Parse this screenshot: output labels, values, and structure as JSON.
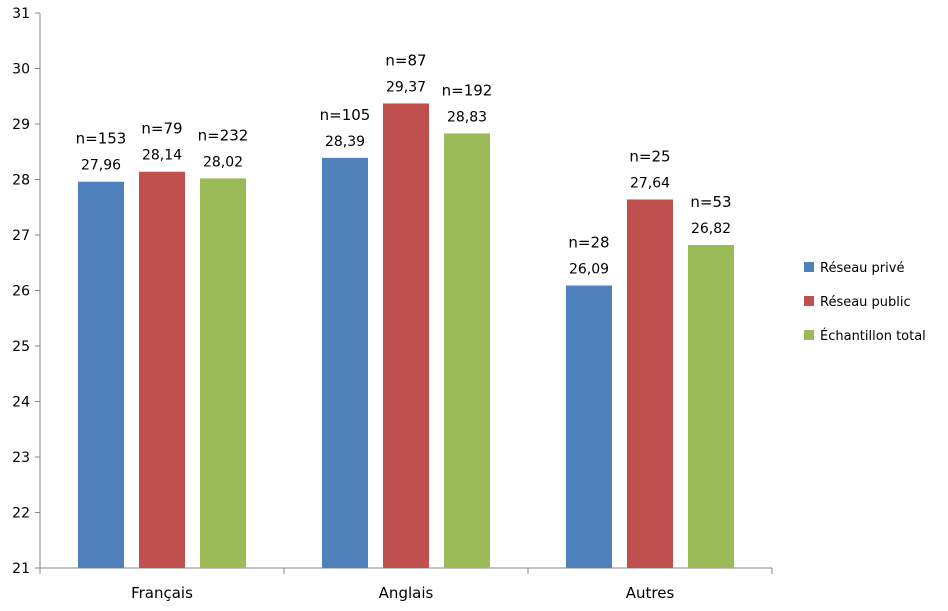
{
  "chart_data": {
    "type": "bar",
    "title": "",
    "xlabel": "",
    "ylabel": "",
    "categories": [
      "Français",
      "Anglais",
      "Autres"
    ],
    "ylim": [
      21,
      31
    ],
    "yticks": [
      21,
      22,
      23,
      24,
      25,
      26,
      27,
      28,
      29,
      30,
      31
    ],
    "grid": false,
    "legend_position": "right",
    "series": [
      {
        "name": "Réseau privé",
        "color": "#4F81BD",
        "values": [
          27.96,
          28.39,
          26.09
        ],
        "labels": [
          "27,96",
          "28,39",
          "26,09"
        ],
        "n_labels": [
          "n=153",
          "n=105",
          "n=28"
        ]
      },
      {
        "name": "Réseau public",
        "color": "#C0504D",
        "values": [
          28.14,
          29.37,
          27.64
        ],
        "labels": [
          "28,14",
          "29,37",
          "27,64"
        ],
        "n_labels": [
          "n=79",
          "n=87",
          "n=25"
        ]
      },
      {
        "name": "Échantillon total",
        "color": "#9BBB59",
        "values": [
          28.02,
          28.83,
          26.82
        ],
        "labels": [
          "28,02",
          "28,83",
          "26,82"
        ],
        "n_labels": [
          "n=232",
          "n=192",
          "n=53"
        ]
      }
    ]
  }
}
